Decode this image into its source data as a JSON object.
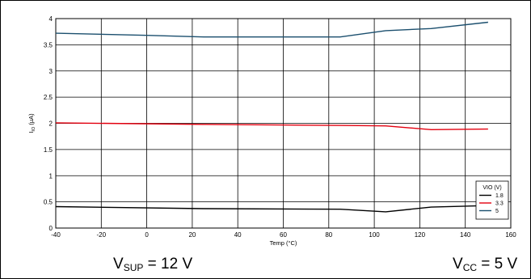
{
  "chart_data": {
    "type": "line",
    "xlabel": "Temp (°C)",
    "ylabel_main": "I",
    "ylabel_sub": "IO",
    "ylabel_unit": " (µA)",
    "xlim": [
      -40,
      160
    ],
    "ylim": [
      0,
      4
    ],
    "xticks": [
      -40,
      -20,
      0,
      20,
      40,
      60,
      80,
      100,
      120,
      140,
      160
    ],
    "yticks": [
      0,
      0.5,
      1,
      1.5,
      2,
      2.5,
      3,
      3.5,
      4
    ],
    "grid": true,
    "legend": {
      "title": "VIO (V)",
      "placement": "bottom-right"
    },
    "series": [
      {
        "name": "1.8",
        "color": "#000000",
        "x": [
          -40,
          25,
          85,
          105,
          125,
          150
        ],
        "y": [
          0.41,
          0.37,
          0.36,
          0.31,
          0.4,
          0.43
        ]
      },
      {
        "name": "3.3",
        "color": "#e3000f",
        "x": [
          -40,
          25,
          85,
          105,
          125,
          150
        ],
        "y": [
          2.01,
          1.98,
          1.96,
          1.95,
          1.88,
          1.89
        ]
      },
      {
        "name": "5",
        "color": "#1b4f6e",
        "x": [
          -40,
          0,
          25,
          85,
          105,
          125,
          150
        ],
        "y": [
          3.72,
          3.68,
          3.65,
          3.65,
          3.77,
          3.81,
          3.93
        ]
      }
    ]
  },
  "conditions": {
    "left_main": "V",
    "left_sub": "SUP",
    "left_rest": " = 12 V",
    "right_main": "V",
    "right_sub": "CC",
    "right_rest": " = 5 V"
  }
}
